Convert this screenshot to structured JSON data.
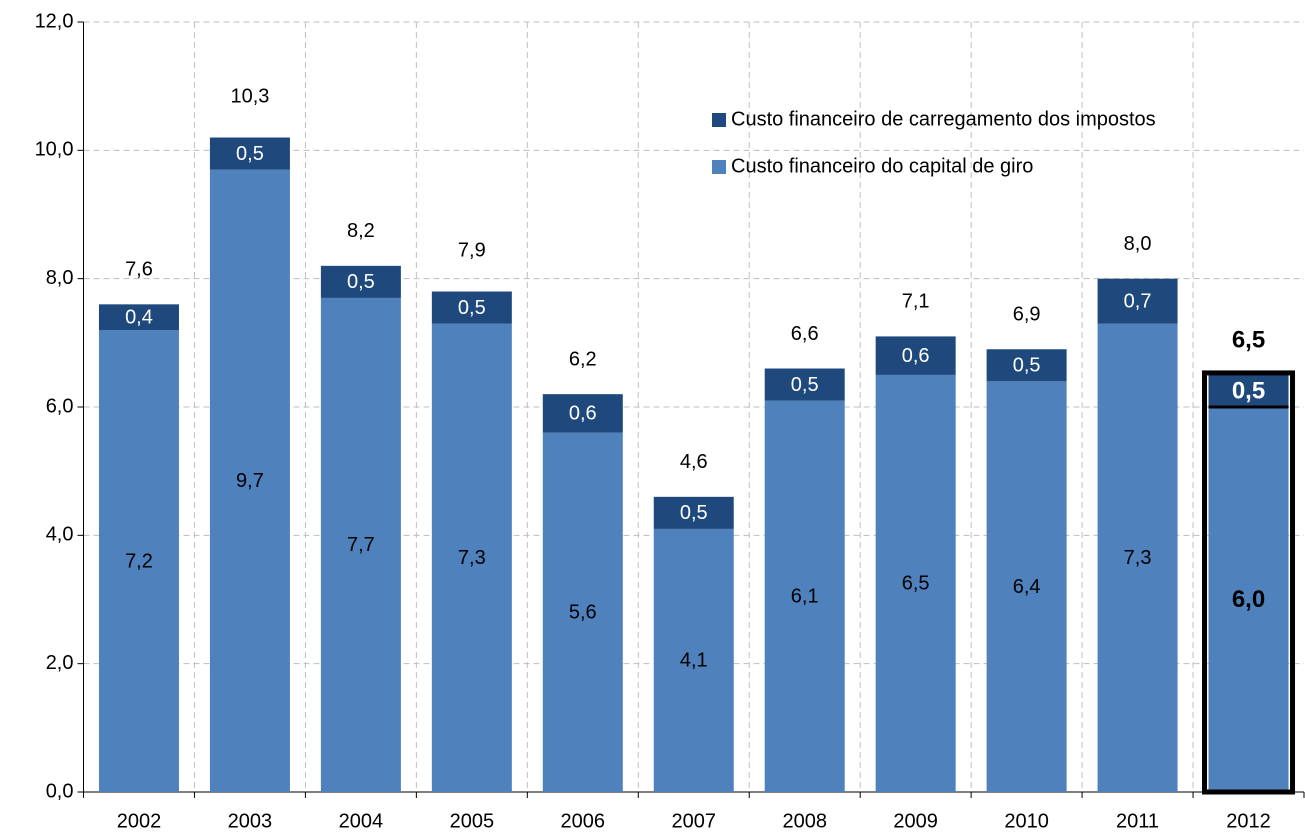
{
  "chart_data": {
    "type": "stacked_bar",
    "categories": [
      "2002",
      "2003",
      "2004",
      "2005",
      "2006",
      "2007",
      "2008",
      "2009",
      "2010",
      "2011",
      "2012"
    ],
    "series": [
      {
        "name": "Custo financeiro do capital de giro",
        "color": "#4f81bd",
        "values": [
          7.2,
          9.7,
          7.7,
          7.3,
          5.6,
          4.1,
          6.1,
          6.5,
          6.4,
          7.3,
          6.0
        ],
        "value_labels": [
          "7,2",
          "9,7",
          "7,7",
          "7,3",
          "5,6",
          "4,1",
          "6,1",
          "6,5",
          "6,4",
          "7,3",
          "6,0"
        ]
      },
      {
        "name": "Custo financeiro de carregamento dos impostos",
        "color": "#1f497d",
        "values": [
          0.4,
          0.5,
          0.5,
          0.5,
          0.6,
          0.5,
          0.5,
          0.6,
          0.5,
          0.7,
          0.5
        ],
        "value_labels": [
          "0,4",
          "0,5",
          "0,5",
          "0,5",
          "0,6",
          "0,5",
          "0,5",
          "0,6",
          "0,5",
          "0,7",
          "0,5"
        ]
      }
    ],
    "totals": {
      "values": [
        7.6,
        10.3,
        8.2,
        7.9,
        6.2,
        4.6,
        6.6,
        7.1,
        6.9,
        8.0,
        6.5
      ],
      "value_labels": [
        "7,6",
        "10,3",
        "8,2",
        "7,9",
        "6,2",
        "4,6",
        "6,6",
        "7,1",
        "6,9",
        "8,0",
        "6,5"
      ]
    },
    "highlight": "2012",
    "ylim": [
      0,
      12
    ],
    "yticks": [
      {
        "value": 0,
        "label": "0,0"
      },
      {
        "value": 2,
        "label": "2,0"
      },
      {
        "value": 4,
        "label": "4,0"
      },
      {
        "value": 6,
        "label": "6,0"
      },
      {
        "value": 8,
        "label": "8,0"
      },
      {
        "value": 10,
        "label": "10,0"
      },
      {
        "value": 12,
        "label": "12,0"
      }
    ],
    "grid": true
  }
}
